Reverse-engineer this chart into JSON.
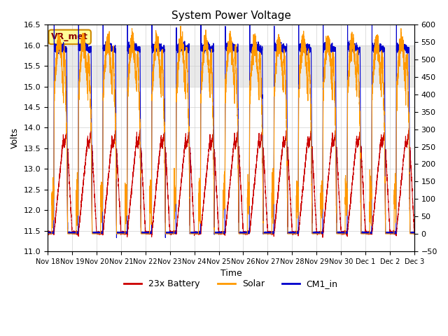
{
  "title": "System Power Voltage",
  "xlabel": "Time",
  "ylabel_left": "Volts",
  "ylim_left": [
    11.0,
    16.5
  ],
  "ylim_right": [
    -50,
    600
  ],
  "yticks_left": [
    11.0,
    11.5,
    12.0,
    12.5,
    13.0,
    13.5,
    14.0,
    14.5,
    15.0,
    15.5,
    16.0,
    16.5
  ],
  "yticks_right": [
    -50,
    0,
    50,
    100,
    150,
    200,
    250,
    300,
    350,
    400,
    450,
    500,
    550,
    600
  ],
  "xtick_labels": [
    "Nov 18",
    "Nov 19",
    "Nov 20",
    "Nov 21",
    "Nov 22",
    "Nov 23",
    "Nov 24",
    "Nov 25",
    "Nov 26",
    "Nov 27",
    "Nov 28",
    "Nov 29",
    "Nov 30",
    "Dec 1",
    "Dec 2",
    "Dec 3"
  ],
  "annotation_text": "VR_met",
  "legend_items": [
    "23x Battery",
    "Solar",
    "CM1_in"
  ],
  "battery_color": "#cc0000",
  "solar_color": "#ff9900",
  "cm1_color": "#0000cc",
  "shaded_region": [
    15.0,
    16.0
  ],
  "background_color": "#ffffff",
  "title_fontsize": 11,
  "n_days": 15
}
